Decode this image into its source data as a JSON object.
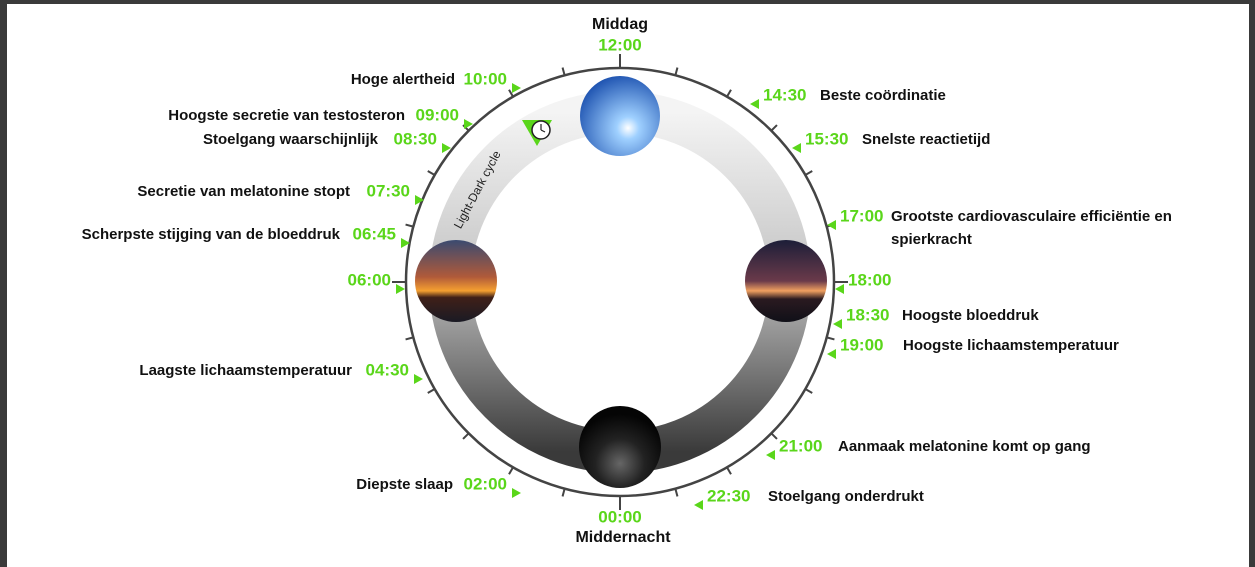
{
  "top": {
    "label": "Middag",
    "time": "12:00"
  },
  "bottom": {
    "time": "00:00",
    "label": "Middernacht"
  },
  "ring_label": "Light-Dark cycle",
  "events": [
    {
      "time": "10:00",
      "lines": [
        "Hoge alertheid"
      ]
    },
    {
      "time": "09:00",
      "lines": [
        "Hoogste secretie van testosteron"
      ]
    },
    {
      "time": "08:30",
      "lines": [
        "Stoelgang waarschijnlijk"
      ]
    },
    {
      "time": "07:30",
      "lines": [
        "Secretie van melatonine stopt"
      ]
    },
    {
      "time": "06:45",
      "lines": [
        "Scherpste stijging van de bloeddruk"
      ]
    },
    {
      "time": "06:00"
    },
    {
      "time": "04:30",
      "lines": [
        "Laagste lichaamstemperatuur"
      ]
    },
    {
      "time": "02:00",
      "lines": [
        "Diepste slaap"
      ]
    },
    {
      "time": "14:30",
      "lines": [
        "Beste coördinatie"
      ]
    },
    {
      "time": "15:30",
      "lines": [
        "Snelste reactietijd"
      ]
    },
    {
      "time": "17:00",
      "lines": [
        "Grootste cardiovasculaire efficiëntie en",
        "spierkracht"
      ]
    },
    {
      "time": "18:00"
    },
    {
      "time": "18:30",
      "lines": [
        "Hoogste bloeddruk"
      ]
    },
    {
      "time": "19:00",
      "lines": [
        "Hoogste lichaamstemperatuur"
      ]
    },
    {
      "time": "21:00",
      "lines": [
        "Aanmaak melatonine komt op gang"
      ]
    },
    {
      "time": "22:30",
      "lines": [
        "Stoelgang onderdrukt"
      ]
    }
  ]
}
